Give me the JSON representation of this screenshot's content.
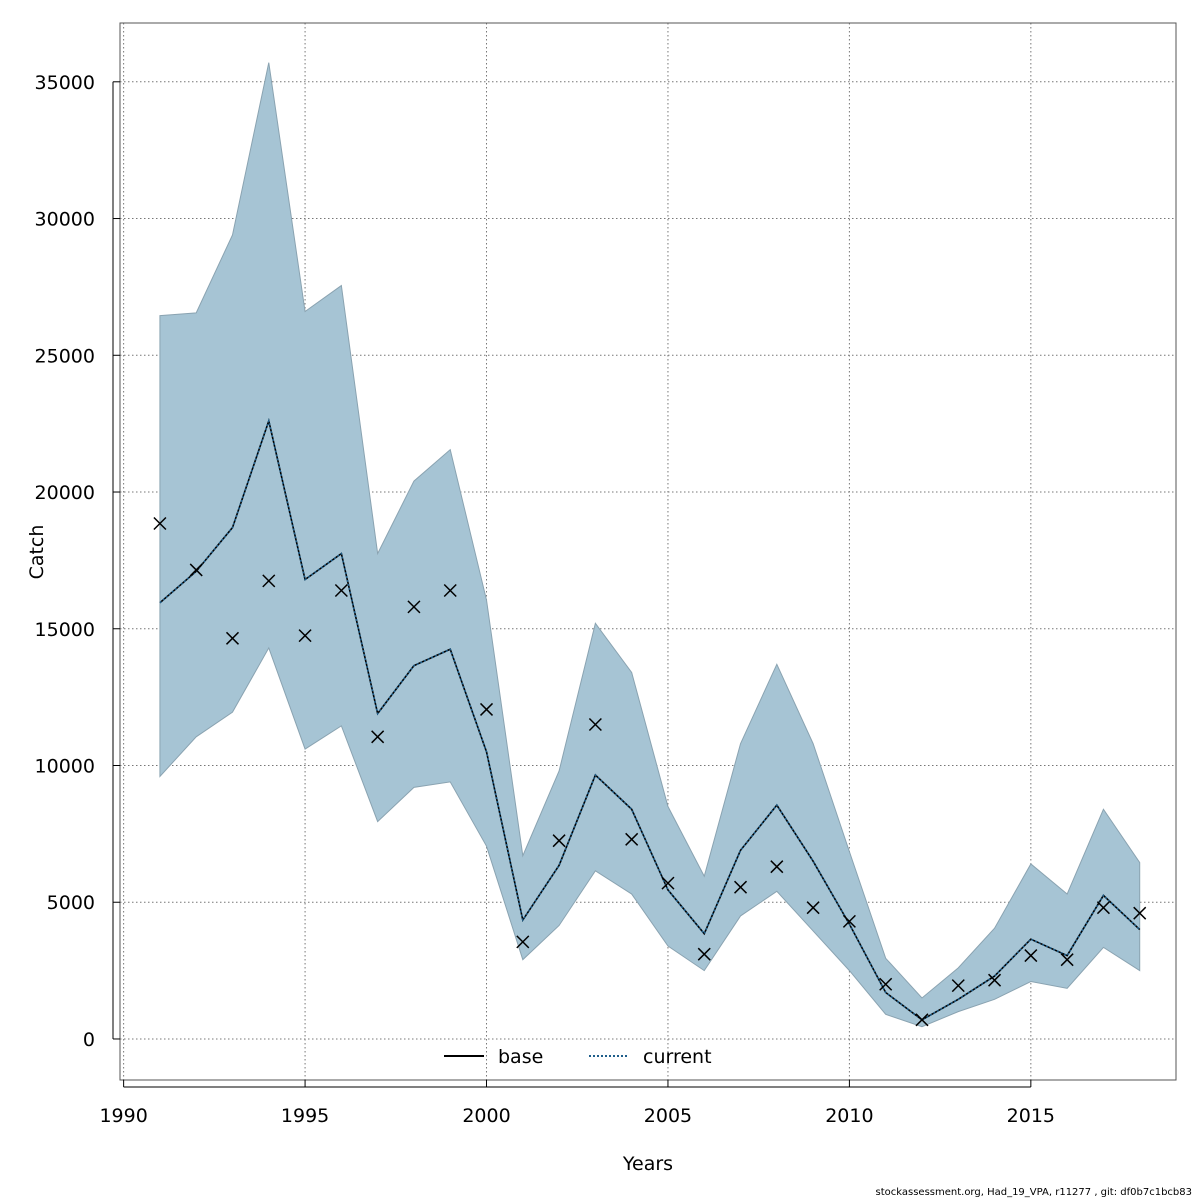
{
  "chart_data": {
    "type": "line",
    "xlabel": "Years",
    "ylabel": "Catch",
    "x_ticks": [
      1990,
      1995,
      2000,
      2005,
      2010,
      2015
    ],
    "y_ticks": [
      0,
      5000,
      10000,
      15000,
      20000,
      25000,
      30000,
      35000
    ],
    "xlim": [
      1989.9,
      2019
    ],
    "ylim": [
      -1500,
      37150
    ],
    "grid": true,
    "legend_position": "bottom-center",
    "x": [
      1991,
      1992,
      1993,
      1994,
      1995,
      1996,
      1997,
      1998,
      1999,
      2000,
      2001,
      2002,
      2003,
      2004,
      2005,
      2006,
      2007,
      2008,
      2009,
      2010,
      2011,
      2012,
      2013,
      2014,
      2015,
      2016,
      2017,
      2018
    ],
    "series": [
      {
        "name": "base",
        "style": "solid",
        "color": "#000000",
        "values": [
          15950,
          17100,
          18700,
          22600,
          16800,
          17750,
          11900,
          13650,
          14250,
          10500,
          4350,
          6350,
          9650,
          8400,
          5450,
          3850,
          6900,
          8550,
          6500,
          4200,
          1700,
          700,
          1450,
          2300,
          3650,
          3050,
          5250,
          4000
        ]
      },
      {
        "name": "current",
        "style": "dotted",
        "color": "#1f5f8b",
        "values": [
          15950,
          17100,
          18700,
          22600,
          16800,
          17750,
          11900,
          13650,
          14250,
          10500,
          4350,
          6350,
          9650,
          8400,
          5450,
          3850,
          6900,
          8550,
          6500,
          4200,
          1700,
          700,
          1450,
          2300,
          3650,
          3050,
          5250,
          4000
        ]
      }
    ],
    "band": {
      "color": "#a6c4d4",
      "upper": [
        26450,
        26550,
        29400,
        35700,
        26600,
        27550,
        17750,
        20400,
        21550,
        16050,
        6700,
        9800,
        15200,
        13400,
        8500,
        5950,
        10800,
        13700,
        10800,
        6850,
        2950,
        1500,
        2600,
        4050,
        6400,
        5300,
        8400,
        6450
      ],
      "lower": [
        9600,
        11050,
        11950,
        14300,
        10600,
        11450,
        7950,
        9200,
        9400,
        7050,
        2900,
        4150,
        6150,
        5300,
        3400,
        2500,
        4500,
        5400,
        3950,
        2500,
        900,
        450,
        1000,
        1450,
        2100,
        1850,
        3350,
        2500
      ]
    },
    "observed": {
      "marker": "x",
      "values": [
        18850,
        17150,
        14650,
        16750,
        14750,
        16400,
        11050,
        15800,
        16400,
        12050,
        3550,
        7250,
        11500,
        7300,
        5700,
        3100,
        5550,
        6300,
        4800,
        4300,
        2000,
        700,
        1950,
        2150,
        3050,
        2900,
        4800,
        4600
      ]
    }
  },
  "footer": "stockassessment.org, Had_19_VPA, r11277 , git: df0b7c1bcb83"
}
